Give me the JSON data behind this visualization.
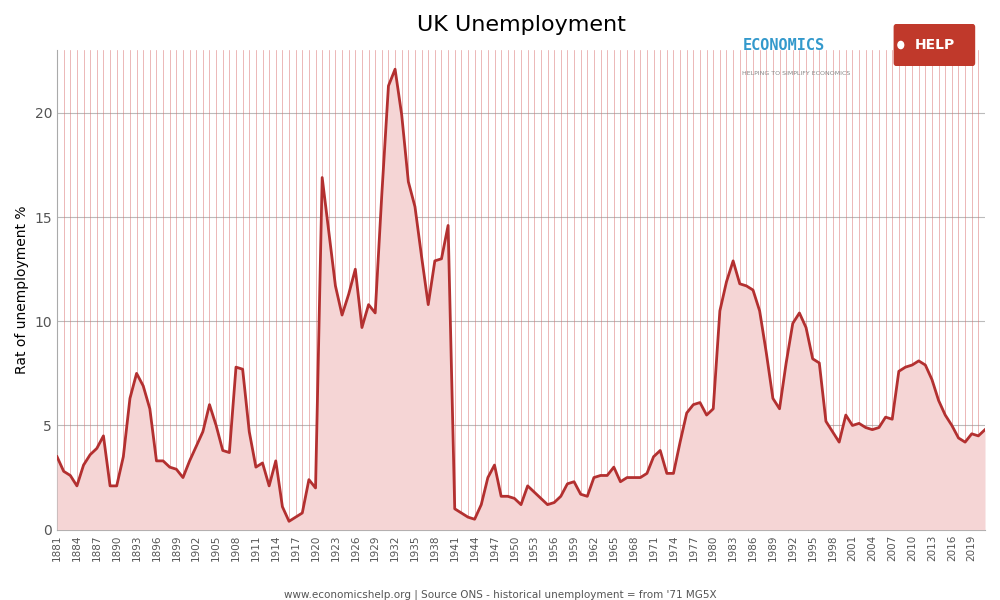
{
  "title": "UK Unemployment",
  "ylabel": "Rat of unemployment %",
  "footer": "www.economicshelp.org | Source ONS - historical unemployment = from '71 MG5X",
  "line_color": "#b33030",
  "fill_color": "#d97070",
  "background_color": "#ffffff",
  "grid_color_h": "#bbbbbb",
  "grid_color_v": "#d97070",
  "ylim": [
    0,
    23
  ],
  "yticks": [
    0,
    5,
    10,
    15,
    20
  ],
  "years": [
    1881,
    1882,
    1883,
    1884,
    1885,
    1886,
    1887,
    1888,
    1889,
    1890,
    1891,
    1892,
    1893,
    1894,
    1895,
    1896,
    1897,
    1898,
    1899,
    1900,
    1901,
    1902,
    1903,
    1904,
    1905,
    1906,
    1907,
    1908,
    1909,
    1910,
    1911,
    1912,
    1913,
    1914,
    1915,
    1916,
    1917,
    1918,
    1919,
    1920,
    1921,
    1922,
    1923,
    1924,
    1925,
    1926,
    1927,
    1928,
    1929,
    1930,
    1931,
    1932,
    1933,
    1934,
    1935,
    1936,
    1937,
    1938,
    1939,
    1940,
    1941,
    1942,
    1943,
    1944,
    1945,
    1946,
    1947,
    1948,
    1949,
    1950,
    1951,
    1952,
    1953,
    1954,
    1955,
    1956,
    1957,
    1958,
    1959,
    1960,
    1961,
    1962,
    1963,
    1964,
    1965,
    1966,
    1967,
    1968,
    1969,
    1970,
    1971,
    1972,
    1973,
    1974,
    1975,
    1976,
    1977,
    1978,
    1979,
    1980,
    1981,
    1982,
    1983,
    1984,
    1985,
    1986,
    1987,
    1988,
    1989,
    1990,
    1991,
    1992,
    1993,
    1994,
    1995,
    1996,
    1997,
    1998,
    1999,
    2000,
    2001,
    2002,
    2003,
    2004,
    2005,
    2006,
    2007,
    2008,
    2009,
    2010,
    2011,
    2012,
    2013,
    2014,
    2015,
    2016,
    2017,
    2018,
    2019,
    2020,
    2021
  ],
  "values": [
    3.5,
    2.8,
    2.6,
    2.1,
    3.1,
    3.6,
    3.9,
    4.5,
    2.1,
    2.1,
    3.5,
    6.3,
    7.5,
    6.9,
    5.8,
    3.3,
    3.3,
    3.0,
    2.9,
    2.5,
    3.3,
    4.0,
    4.7,
    6.0,
    5.0,
    3.8,
    3.7,
    7.8,
    7.7,
    4.7,
    3.0,
    3.2,
    2.1,
    3.3,
    1.1,
    0.4,
    0.6,
    0.8,
    2.4,
    2.0,
    16.9,
    14.3,
    11.7,
    10.3,
    11.3,
    12.5,
    9.7,
    10.8,
    10.4,
    16.1,
    21.3,
    22.1,
    19.9,
    16.7,
    15.5,
    13.1,
    10.8,
    12.9,
    13.0,
    14.6,
    1.0,
    0.8,
    0.6,
    0.5,
    1.2,
    2.5,
    3.1,
    1.6,
    1.6,
    1.5,
    1.2,
    2.1,
    1.8,
    1.5,
    1.2,
    1.3,
    1.6,
    2.2,
    2.3,
    1.7,
    1.6,
    2.5,
    2.6,
    2.6,
    3.0,
    2.3,
    2.5,
    2.5,
    2.5,
    2.7,
    3.5,
    3.8,
    2.7,
    2.7,
    4.2,
    5.6,
    6.0,
    6.1,
    5.5,
    5.8,
    10.5,
    11.9,
    12.9,
    11.8,
    11.7,
    11.5,
    10.5,
    8.5,
    6.3,
    5.8,
    8.0,
    9.9,
    10.4,
    9.7,
    8.2,
    8.0,
    5.2,
    4.7,
    4.2,
    5.5,
    5.0,
    5.1,
    4.9,
    4.8,
    4.9,
    5.4,
    5.3,
    7.6,
    7.8,
    7.9,
    8.1,
    7.9,
    7.2,
    6.2,
    5.5,
    5.0,
    4.4,
    4.2,
    4.6,
    4.5,
    4.8
  ]
}
